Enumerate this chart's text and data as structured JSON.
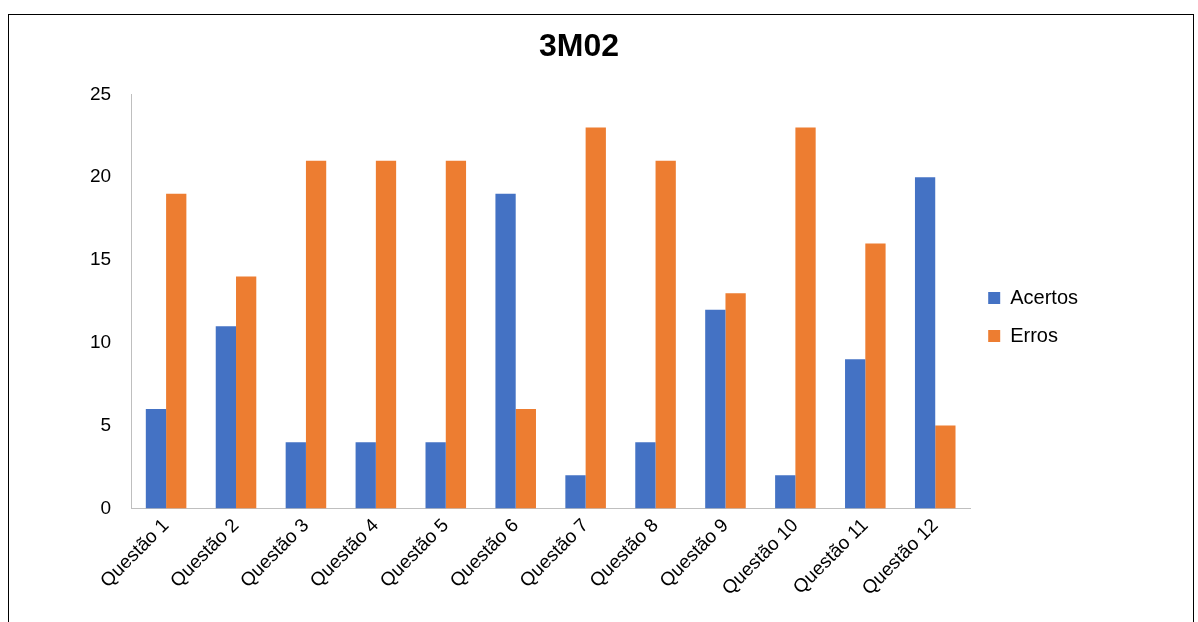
{
  "chart_data": {
    "type": "bar",
    "title": "3M02",
    "categories": [
      "Questão 1",
      "Questão 2",
      "Questão 3",
      "Questão 4",
      "Questão 5",
      "Questão 6",
      "Questão 7",
      "Questão 8",
      "Questão 9",
      "Questão 10",
      "Questão 11",
      "Questão 12"
    ],
    "series": [
      {
        "name": "Acertos",
        "color": "#4472c4",
        "values": [
          6,
          11,
          4,
          4,
          4,
          19,
          2,
          4,
          12,
          2,
          9,
          20
        ]
      },
      {
        "name": "Erros",
        "color": "#ed7d31",
        "values": [
          19,
          14,
          21,
          21,
          21,
          6,
          23,
          21,
          13,
          23,
          16,
          5
        ]
      }
    ],
    "ylim": [
      0,
      25
    ],
    "yticks": [
      0,
      5,
      10,
      15,
      20,
      25
    ],
    "grid": false,
    "legend": "right"
  }
}
